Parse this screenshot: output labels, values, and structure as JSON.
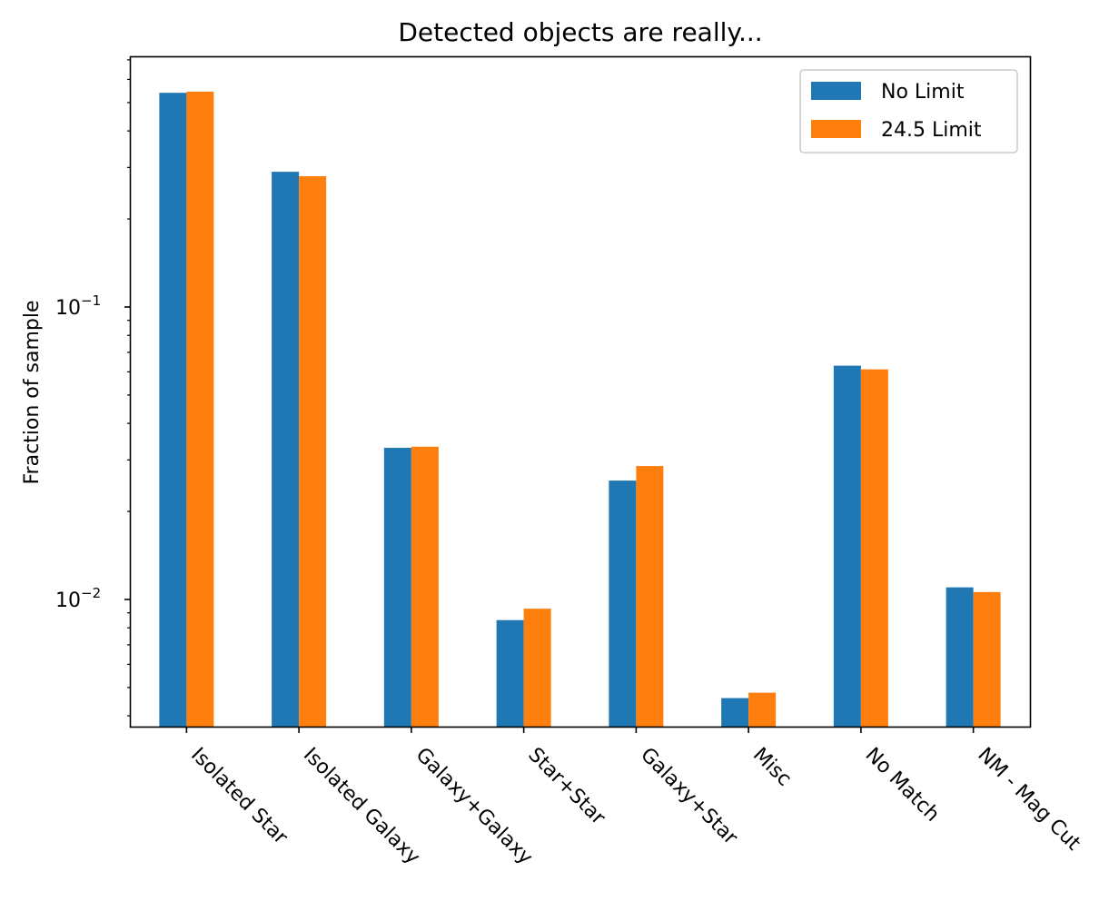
{
  "chart_data": {
    "type": "bar",
    "title": "Detected objects are really...",
    "xlabel": "",
    "ylabel": "Fraction of sample",
    "yscale": "log",
    "ylim": [
      0.0038,
      0.75
    ],
    "categories": [
      "Isolated Star",
      "Isolated Galaxy",
      "Galaxy+Galaxy",
      "Star+Star",
      "Galaxy+Star",
      "Misc",
      "No Match",
      "NM - Mag Cut"
    ],
    "series": [
      {
        "name": "No Limit",
        "color": "#1f77b4",
        "values": [
          0.54,
          0.29,
          0.033,
          0.0085,
          0.0255,
          0.0046,
          0.063,
          0.011
        ]
      },
      {
        "name": "24.5 Limit",
        "color": "#ff7f0e",
        "values": [
          0.545,
          0.28,
          0.0333,
          0.0093,
          0.0286,
          0.0048,
          0.0612,
          0.0106
        ]
      }
    ],
    "y_major_ticks": [
      {
        "value": 0.1,
        "base": "10",
        "exp": "−1"
      },
      {
        "value": 0.01,
        "base": "10",
        "exp": "−2"
      }
    ],
    "y_minor_ticks": [
      0.004,
      0.005,
      0.006,
      0.007,
      0.008,
      0.009,
      0.02,
      0.03,
      0.04,
      0.05,
      0.06,
      0.07,
      0.08,
      0.09,
      0.2,
      0.3,
      0.4,
      0.5,
      0.6,
      0.7
    ],
    "legend_position": "top-right",
    "grid": false
  }
}
